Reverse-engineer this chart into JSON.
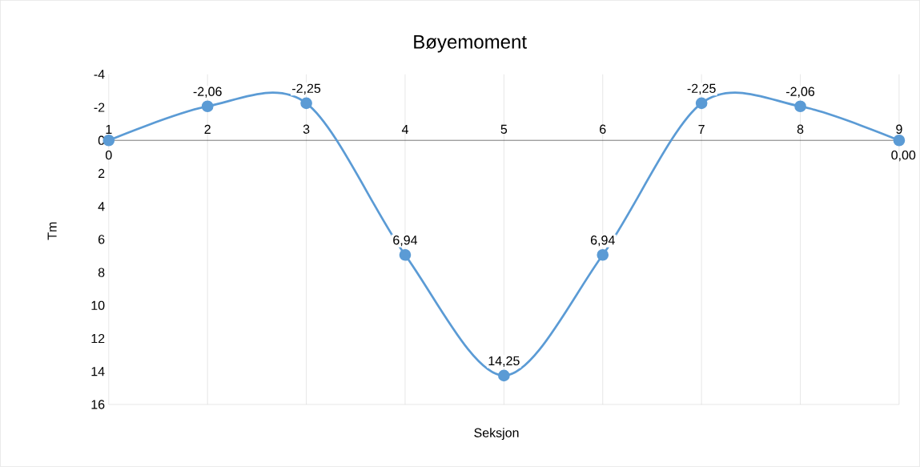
{
  "chart_data": {
    "type": "line",
    "title": "Bøyemoment",
    "xlabel": "Seksjon",
    "ylabel": "Tm",
    "categories": [
      "1",
      "2",
      "3",
      "4",
      "5",
      "6",
      "7",
      "8",
      "9"
    ],
    "series": [
      {
        "color": "#5b9bd5",
        "values": [
          0,
          -2.06,
          -2.25,
          6.94,
          14.25,
          6.94,
          -2.25,
          -2.06,
          0
        ],
        "value_labels": [
          "0",
          "-2,06",
          "-2,25",
          "6,94",
          "14,25",
          "6,94",
          "-2,25",
          "-2,06",
          "0,00"
        ]
      }
    ],
    "ylim": [
      16,
      -4
    ],
    "yticks": [
      -4,
      -2,
      0,
      2,
      4,
      6,
      8,
      10,
      12,
      14,
      16
    ],
    "grid": "x",
    "marker": "circle",
    "line_style": "solid"
  }
}
